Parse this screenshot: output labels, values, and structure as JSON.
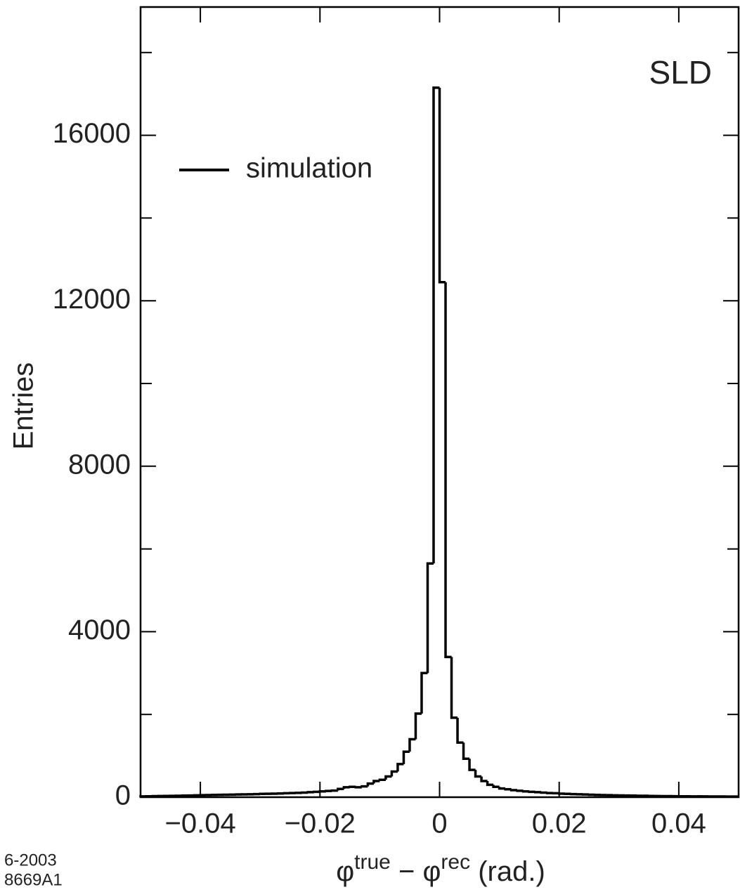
{
  "chart_data": {
    "type": "histogram",
    "annotation": "SLD",
    "footnote": [
      "6-2003",
      "8669A1"
    ],
    "ylabel": "Entries",
    "xlabel": [
      "φ",
      "true",
      " − φ",
      "rec",
      " (rad.)"
    ],
    "bins": [
      -0.05,
      -0.049,
      -0.048,
      -0.047,
      -0.046,
      -0.045,
      -0.044,
      -0.043,
      -0.042,
      -0.041,
      -0.04,
      -0.039,
      -0.038,
      -0.037,
      -0.036,
      -0.035,
      -0.034,
      -0.033,
      -0.032,
      -0.031,
      -0.03,
      -0.029,
      -0.028,
      -0.027,
      -0.026,
      -0.025,
      -0.024,
      -0.023,
      -0.022,
      -0.021,
      -0.02,
      -0.019,
      -0.018,
      -0.017,
      -0.016,
      -0.015,
      -0.014,
      -0.013,
      -0.012,
      -0.011,
      -0.01,
      -0.009,
      -0.008,
      -0.007,
      -0.006,
      -0.005,
      -0.004,
      -0.003,
      -0.002,
      -0.001,
      0,
      0.001,
      0.002,
      0.003,
      0.004,
      0.005,
      0.006,
      0.007,
      0.008,
      0.009,
      0.01,
      0.011,
      0.012,
      0.013,
      0.014,
      0.015,
      0.016,
      0.017,
      0.018,
      0.019,
      0.02,
      0.021,
      0.022,
      0.023,
      0.024,
      0.025,
      0.026,
      0.027,
      0.028,
      0.029,
      0.03,
      0.031,
      0.032,
      0.033,
      0.034,
      0.035,
      0.036,
      0.037,
      0.038,
      0.039,
      0.04,
      0.041,
      0.042,
      0.043,
      0.044,
      0.045,
      0.046,
      0.047,
      0.048,
      0.049,
      0.05
    ],
    "series": [
      {
        "name": "simulation",
        "color": "#000000",
        "values": [
          20,
          22,
          25,
          27,
          30,
          32,
          35,
          38,
          40,
          45,
          48,
          50,
          55,
          58,
          60,
          62,
          65,
          68,
          70,
          75,
          80,
          82,
          85,
          90,
          95,
          100,
          105,
          110,
          120,
          130,
          140,
          150,
          160,
          200,
          240,
          250,
          240,
          260,
          330,
          390,
          420,
          500,
          620,
          800,
          1100,
          1400,
          2020,
          3000,
          5650,
          17150,
          12450,
          3390,
          1920,
          1320,
          930,
          660,
          500,
          390,
          300,
          250,
          210,
          190,
          170,
          155,
          140,
          130,
          120,
          110,
          100,
          95,
          85,
          80,
          75,
          70,
          65,
          60,
          55,
          50,
          48,
          45,
          42,
          40,
          38,
          35,
          33,
          30,
          28,
          26,
          25,
          24,
          22,
          21,
          20,
          20,
          19,
          18,
          17,
          16,
          15,
          15
        ]
      }
    ],
    "xlim": [
      -0.05,
      0.05
    ],
    "ylim": [
      0,
      19100
    ],
    "xticks": [
      {
        "value": -0.04,
        "label": "−0.04"
      },
      {
        "value": -0.02,
        "label": "−0.02"
      },
      0,
      0.02,
      0.04
    ],
    "yticks": [
      0,
      4000,
      8000,
      12000,
      16000
    ],
    "yminorticks": [
      2000,
      6000,
      10000,
      14000,
      18000
    ]
  }
}
